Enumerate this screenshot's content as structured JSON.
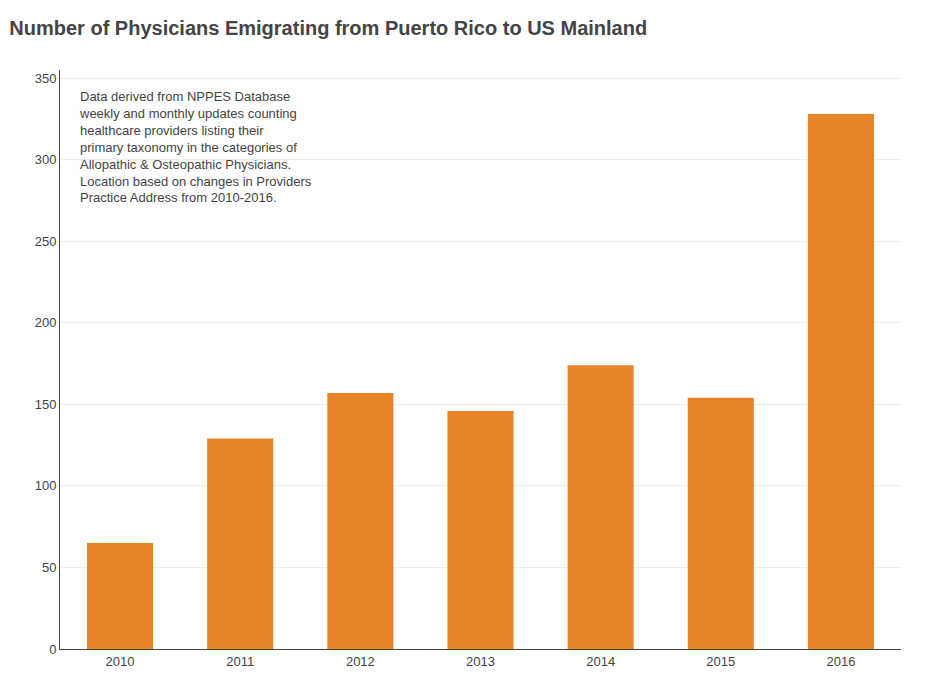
{
  "chart_data": {
    "type": "bar",
    "title": "Number of Physicians Emigrating from Puerto Rico to US Mainland",
    "categories": [
      "2010",
      "2011",
      "2012",
      "2013",
      "2014",
      "2015",
      "2016"
    ],
    "values": [
      65,
      129,
      157,
      146,
      174,
      154,
      328
    ],
    "color": "#E8832A",
    "ylim": [
      0,
      355
    ],
    "yticks": [
      0,
      50,
      100,
      150,
      200,
      250,
      300,
      350
    ],
    "grid": true,
    "annotations": [
      "Data derived from NPPES Database\nweekly and monthly updates counting\nhealthcare providers listing their\nprimary taxonomy in the categories of\nAllopathic & Osteopathic Physicians.\nLocation based on changes in Providers\nPractice Address from 2010-2016."
    ]
  }
}
